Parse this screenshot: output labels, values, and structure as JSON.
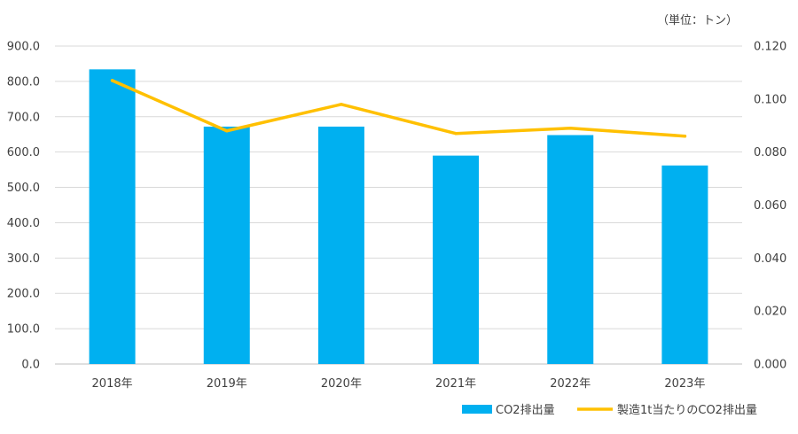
{
  "chart_data": {
    "type": "bar",
    "unit_label": "（単位：トン）",
    "categories": [
      "2018年",
      "2019年",
      "2020年",
      "2021年",
      "2022年",
      "2023年"
    ],
    "series": [
      {
        "name": "CO2排出量",
        "type": "bar",
        "axis": "left",
        "color": "#00B0F0",
        "values": [
          834.0,
          672.0,
          672.0,
          590.0,
          648.0,
          562.0
        ]
      },
      {
        "name": "製造1t当たりのCO2排出量",
        "type": "line",
        "axis": "right",
        "color": "#FFC000",
        "values": [
          0.107,
          0.088,
          0.098,
          0.087,
          0.089,
          0.086
        ]
      }
    ],
    "y_left": {
      "range": [
        0,
        900
      ],
      "ticks": [
        "0.0",
        "100.0",
        "200.0",
        "300.0",
        "400.0",
        "500.0",
        "600.0",
        "700.0",
        "800.0",
        "900.0"
      ]
    },
    "y_right": {
      "range": [
        0,
        0.12
      ],
      "ticks": [
        "0.000",
        "0.020",
        "0.040",
        "0.060",
        "0.080",
        "0.100",
        "0.120"
      ]
    },
    "grid": true,
    "legend_position": "bottom-right"
  }
}
